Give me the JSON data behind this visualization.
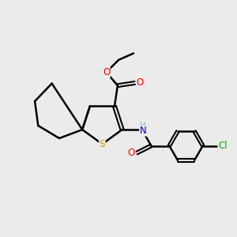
{
  "background_color": "#ebebeb",
  "bond_color": "#000000",
  "atom_colors": {
    "S": "#c8a000",
    "O": "#ff0000",
    "N": "#0000cd",
    "Cl": "#00aa00",
    "H": "#7fbfbf",
    "C": "#000000"
  },
  "figsize": [
    3.0,
    3.0
  ],
  "dpi": 100
}
